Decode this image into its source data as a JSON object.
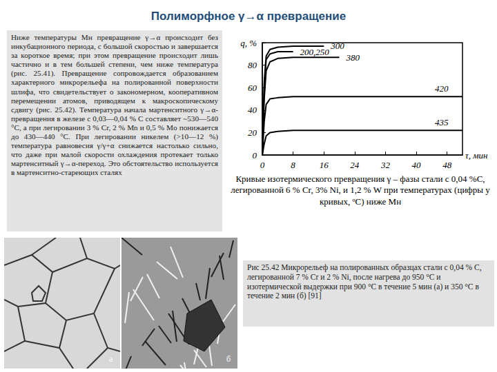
{
  "title": "Полиморфное γ→α превращение",
  "text": "Ниже температуры Mн превращение γ→α происходит без инкубационного периода, с большой скоростью и завершается за короткое время; при этом превращение происходит лишь частично и в тем большей степени, чем ниже температура (рис. 25.41). Превращение сопровождается образованием характерного микрорельефа на полированной поверхности шлифа, что свидетельствует о закономерном, кооперативном перемещении атомов, приводящем к макроскопическому сдвигу (рис. 25.42). Температура начала мартенситного γ→α-превращения в железе с 0,03—0,04 % C составляет ~530—540 °C, а при легировании 3 % Cr, 2 % Mn и 0,5 % Mo понижается до 430—440 °C. При легировании никелем (>10—12 %) температура равновесия γ/γ+α снижается настолько сильно, что даже при малой скорости охлаждения протекает только мартенситный γ→α-переход. Это обстоятельство используется в мартенситно-стареющих сталях",
  "chart_data": {
    "type": "line",
    "x_label": "τ, мин",
    "xlim": [
      0,
      52
    ],
    "xticks": [
      0,
      8,
      16,
      24,
      32,
      40,
      48
    ],
    "ylim": [
      0,
      100
    ],
    "yticks": [
      0,
      20,
      40,
      60,
      80,
      {
        "value": 100,
        "label": "q, %"
      }
    ],
    "grid": false,
    "series": [
      {
        "name": "200,250",
        "color": "#000000",
        "x": [
          0,
          0.5,
          1,
          2,
          4,
          8
        ],
        "values": [
          0,
          60,
          85,
          90,
          92,
          92
        ]
      },
      {
        "name": "300",
        "color": "#000000",
        "x": [
          0,
          0.5,
          1,
          2,
          4,
          8,
          12,
          16
        ],
        "values": [
          0,
          65,
          88,
          94,
          96,
          97,
          97,
          97
        ]
      },
      {
        "name": "380",
        "color": "#000000",
        "x": [
          0,
          0.5,
          1,
          2,
          4,
          8,
          16,
          20
        ],
        "values": [
          0,
          50,
          75,
          83,
          86,
          87,
          87,
          87
        ]
      },
      {
        "name": "420",
        "color": "#000000",
        "x": [
          0,
          0.5,
          1,
          2,
          4,
          8,
          16,
          24,
          32,
          40,
          48,
          52
        ],
        "values": [
          0,
          30,
          45,
          50,
          51,
          52,
          52,
          52,
          52,
          52,
          52,
          52
        ]
      },
      {
        "name": "435",
        "color": "#000000",
        "x": [
          0,
          0.5,
          1,
          2,
          4,
          8,
          16,
          24,
          32,
          40,
          48,
          52
        ],
        "values": [
          0,
          10,
          17,
          20,
          21,
          22,
          22,
          22,
          22,
          22,
          22,
          22
        ]
      }
    ]
  },
  "chart_caption": "Кривые изотермического превращения γ – фазы стали с 0,04 %С, легированной 6 % Cr, 3% Ni, и 1,2 % W при температурах (цифры у кривых, ºС) ниже Мн",
  "micrographs": [
    {
      "label": "а"
    },
    {
      "label": "б"
    }
  ],
  "figure_caption": "Рис 25.42 Микрорельеф на полированных образцах стали с 0,04 % С, легированной 7 % Cr и 2 % Ni, после нагрева до 950 °С и изотермической выдержки при 900 °С в течение 5 мин (а) и 350 °С в течение 2 мин (б) [91]"
}
